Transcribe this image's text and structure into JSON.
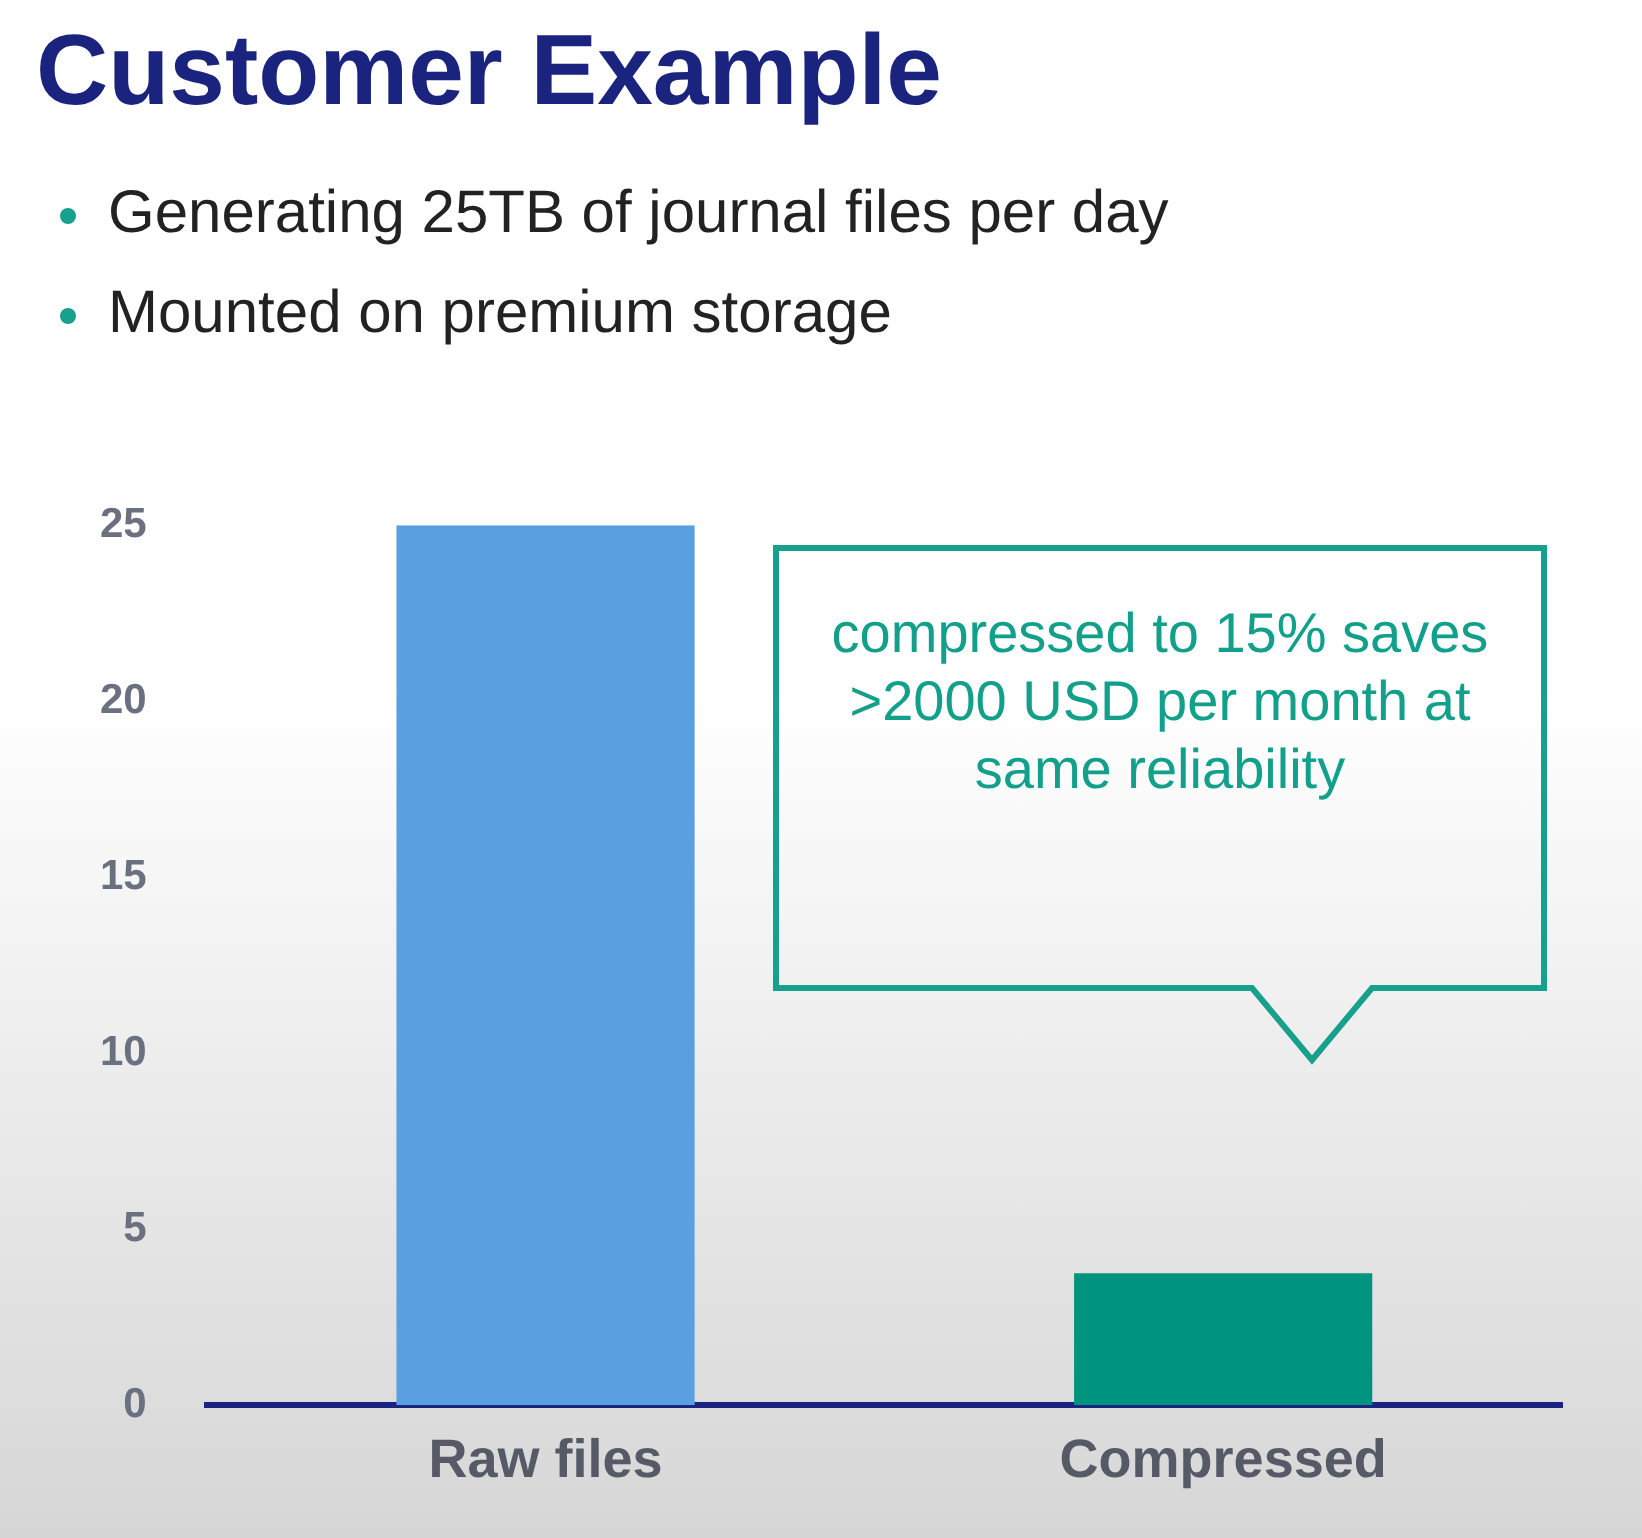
{
  "chart_data": {
    "type": "bar",
    "title": "Customer Example",
    "annotations": [
      "Generating 25TB of journal files per day",
      "Mounted on premium storage",
      "compressed to 15% saves >2000 USD per month at same reliability"
    ],
    "categories": [
      "Raw files",
      "Compressed"
    ],
    "values": [
      25,
      3.75
    ],
    "colors": [
      "#5a9fe0",
      "#00937f"
    ],
    "ylim": [
      0,
      25
    ],
    "yticks": [
      0,
      5,
      10,
      15,
      20,
      25
    ],
    "grid": false,
    "legend": false
  }
}
